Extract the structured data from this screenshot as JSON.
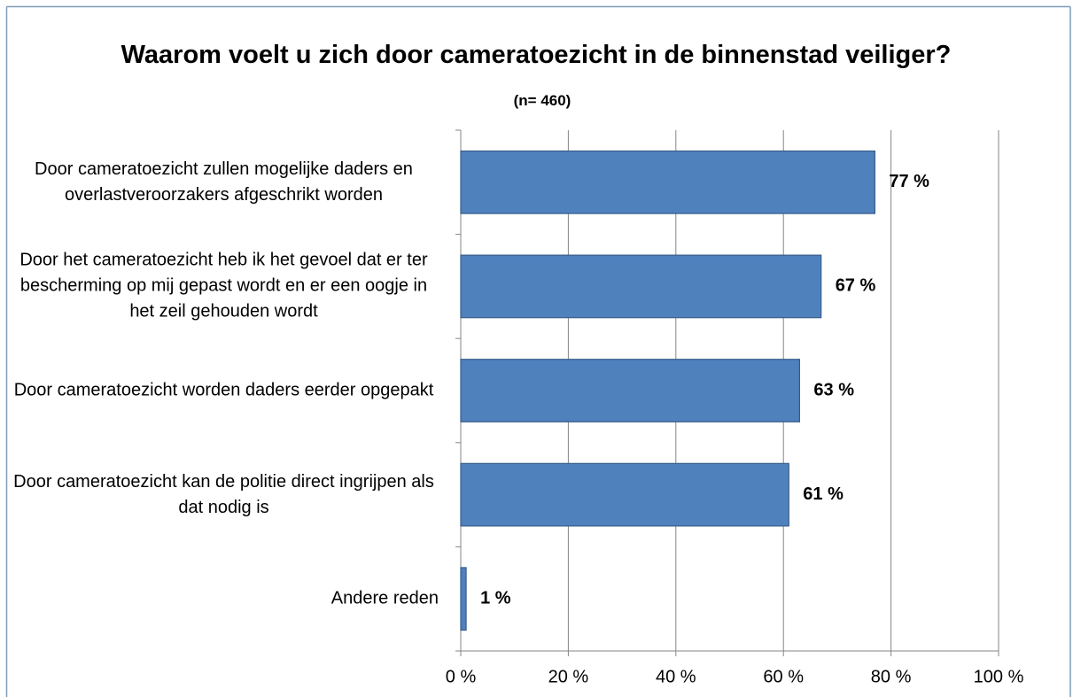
{
  "chart_data": {
    "type": "bar",
    "orientation": "horizontal",
    "title": "Waarom voelt u zich door cameratoezicht in de  binnenstad veiliger?",
    "subtitle": "(n= 460)",
    "categories": [
      "Door cameratoezicht zullen mogelijke daders en overlastveroorzakers afgeschrikt worden",
      "Door het cameratoezicht heb ik het gevoel dat er ter bescherming op mij gepast wordt en er een oogje in het zeil gehouden wordt",
      "Door cameratoezicht worden daders eerder opgepakt",
      "Door cameratoezicht kan de politie direct ingrijpen als dat nodig is",
      "Andere reden"
    ],
    "values": [
      77,
      67,
      63,
      61,
      1
    ],
    "value_labels": [
      "77 %",
      "67 %",
      "63 %",
      "61 %",
      "1 %"
    ],
    "color": "#4f81bd",
    "xlim": [
      0,
      100
    ],
    "xticks": [
      {
        "value": 0,
        "label": "0 %"
      },
      {
        "value": 20,
        "label": "20 %"
      },
      {
        "value": 40,
        "label": "40 %"
      },
      {
        "value": 60,
        "label": "60 %"
      },
      {
        "value": 80,
        "label": "80 %"
      },
      {
        "value": 100,
        "label": "100 %"
      }
    ],
    "grid": true
  }
}
